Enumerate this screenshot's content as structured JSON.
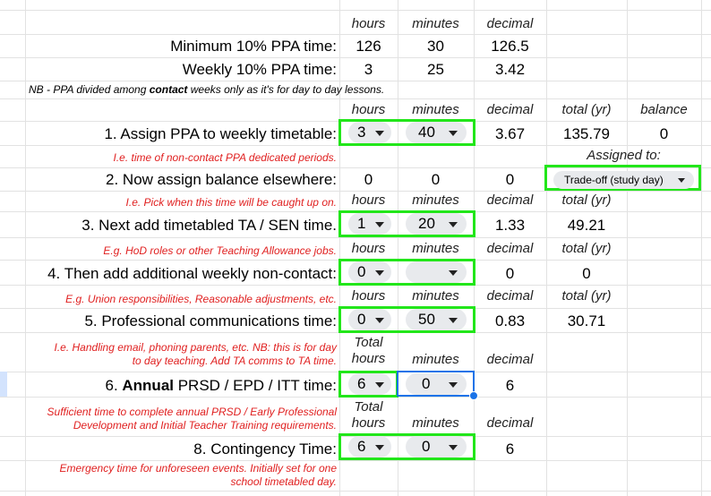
{
  "headers": {
    "hours": "hours",
    "minutes": "minutes",
    "decimal": "decimal",
    "total_yr": "total (yr)",
    "balance": "balance",
    "total": "Total",
    "assigned_to": "Assigned to:"
  },
  "min_ppa": {
    "label": "Minimum 10% PPA time:",
    "hours": "126",
    "minutes": "30",
    "decimal": "126.5"
  },
  "weekly_ppa": {
    "label": "Weekly 10% PPA time:",
    "hours": "3",
    "minutes": "25",
    "decimal": "3.42"
  },
  "nb": {
    "pre": "NB - PPA divided among ",
    "bold": "contact",
    "post": " weeks only as it's for day to day lessons."
  },
  "row1": {
    "label": "1. Assign PPA to weekly timetable:",
    "hours": "3",
    "minutes": "40",
    "decimal": "3.67",
    "total": "135.79",
    "balance": "0",
    "note": "I.e. time of non-contact PPA dedicated periods."
  },
  "row2": {
    "label": "2. Now assign balance elsewhere:",
    "hours": "0",
    "minutes": "0",
    "decimal": "0",
    "assigned": "Trade-off (study day)",
    "note": "I.e. Pick when this time will be caught up on."
  },
  "row3": {
    "label": "3. Next add timetabled TA / SEN time.",
    "hours": "1",
    "minutes": "20",
    "decimal": "1.33",
    "total": "49.21",
    "note": "E.g. HoD roles or other Teaching Allowance jobs."
  },
  "row4": {
    "label": "4. Then add additional weekly non-contact:",
    "hours": "0",
    "minutes": "",
    "decimal": "0",
    "total": "0",
    "note": "E.g. Union responsibilities, Reasonable adjustments, etc."
  },
  "row5": {
    "label": "5. Professional communications time:",
    "hours": "0",
    "minutes": "50",
    "decimal": "0.83",
    "total": "30.71",
    "note1": "I.e. Handling email, phoning parents, etc. NB: this is for day",
    "note2": "to day teaching. Add TA comms to TA time."
  },
  "row6": {
    "label_pre": "6. ",
    "label_bold": "Annual",
    "label_post": " PRSD / EPD / ITT time:",
    "hours": "6",
    "minutes": "0",
    "decimal": "6",
    "note1": "Sufficient time to complete annual PRSD / Early Professional",
    "note2": "Development and Initial Teacher Training requirements."
  },
  "row8": {
    "label": "8. Contingency Time:",
    "hours": "6",
    "minutes": "0",
    "decimal": "6",
    "note1": "Emergency time for unforeseen events. Initially set for one",
    "note2": "school timetabled day."
  },
  "colors": {
    "green_box": "#22e61a",
    "note_red": "#e02020",
    "selection_blue": "#1a73e8"
  }
}
